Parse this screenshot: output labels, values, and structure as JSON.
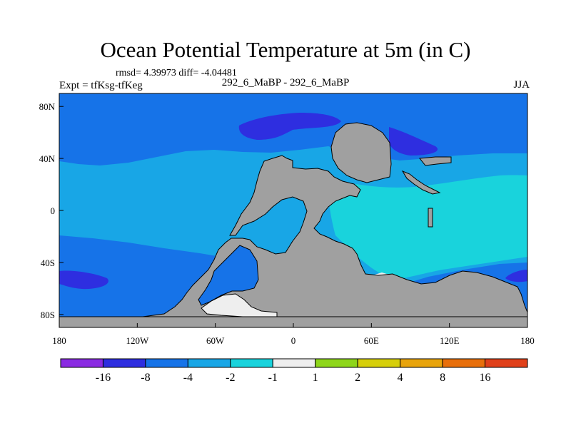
{
  "chart_data": {
    "type": "heatmap",
    "title": "Ocean Potential Temperature at 5m (in C)",
    "stats_text": "rmsd= 4.39973  diff= -4.04481",
    "left_label": "Expt = tfKsg-tfKeg",
    "center_label": "292_6_MaBP - 292_6_MaBP",
    "right_label": "JJA",
    "x_ticks": [
      "180",
      "120W",
      "60W",
      "0",
      "60E",
      "120E",
      "180"
    ],
    "x_tick_values": [
      -180,
      -120,
      -60,
      0,
      60,
      120,
      180
    ],
    "y_ticks": [
      "80N",
      "40N",
      "0",
      "40S",
      "80S"
    ],
    "y_tick_values": [
      80,
      40,
      0,
      -40,
      -80
    ],
    "xlim": [
      -180,
      180
    ],
    "ylim": [
      -90,
      90
    ],
    "colorbar": {
      "colors": [
        "#8a2be2",
        "#2e2ee0",
        "#1673e8",
        "#18a6e6",
        "#19d3dc",
        "#eeeeee",
        "#8ed61a",
        "#d6cf0a",
        "#e8a40c",
        "#e86f0b",
        "#e0401a"
      ],
      "labels": [
        "-16",
        "-8",
        "-4",
        "-2",
        "-1",
        "1",
        "2",
        "4",
        "8",
        "16"
      ]
    },
    "land_color": "#a0a0a0",
    "ocean_regions": [
      {
        "level": "-4 to -2",
        "lon": [
          -180,
          180
        ],
        "lat": [
          -90,
          90
        ]
      },
      {
        "level": "-8 to -4",
        "lon": [
          -180,
          180
        ],
        "lat": [
          45,
          90
        ]
      },
      {
        "level": "-8 to -4",
        "lon": [
          -180,
          180
        ],
        "lat": [
          -90,
          -30
        ]
      },
      {
        "level": "-16 to -8",
        "lon": [
          -90,
          -20
        ],
        "lat": [
          55,
          72
        ]
      },
      {
        "level": "-16 to -8",
        "lon": [
          70,
          130
        ],
        "lat": [
          40,
          70
        ]
      },
      {
        "level": "-16 to -8",
        "lon": [
          -180,
          -150
        ],
        "lat": [
          -62,
          -48
        ]
      },
      {
        "level": "-16 to -8",
        "lon": [
          165,
          180
        ],
        "lat": [
          -58,
          -50
        ]
      },
      {
        "level": "-2 to -1",
        "lon": [
          30,
          180
        ],
        "lat": [
          -50,
          35
        ]
      },
      {
        "level": "-1 to 1",
        "lon": [
          -85,
          -20
        ],
        "lat": [
          -85,
          -62
        ]
      },
      {
        "level": "-1 to 1",
        "lon": [
          53,
          85
        ],
        "lat": [
          -62,
          -50
        ]
      }
    ]
  }
}
